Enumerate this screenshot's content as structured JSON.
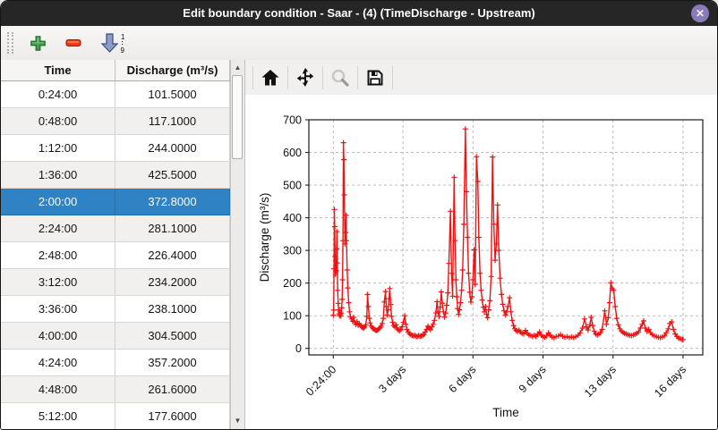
{
  "window": {
    "title": "Edit boundary condition - Saar -  (4) (TimeDischarge - Upstream)",
    "close_label": "✕"
  },
  "toolbar": {
    "add_icon": "green-plus",
    "remove_icon": "red-minus",
    "sort_icon": "sort-ascending-arrow",
    "sort_top": "1",
    "sort_bottom": "9"
  },
  "table": {
    "columns": [
      "Time",
      "Discharge (m³/s)"
    ],
    "selected_row": 4,
    "selection_color": "#2f82c4",
    "rows": [
      [
        "0:24:00",
        "101.5000"
      ],
      [
        "0:48:00",
        "117.1000"
      ],
      [
        "1:12:00",
        "244.0000"
      ],
      [
        "1:36:00",
        "425.5000"
      ],
      [
        "2:00:00",
        "372.8000"
      ],
      [
        "2:24:00",
        "281.1000"
      ],
      [
        "2:48:00",
        "226.4000"
      ],
      [
        "3:12:00",
        "234.2000"
      ],
      [
        "3:36:00",
        "238.1000"
      ],
      [
        "4:00:00",
        "304.5000"
      ],
      [
        "4:24:00",
        "357.2000"
      ],
      [
        "4:48:00",
        "261.6000"
      ],
      [
        "5:12:00",
        "177.6000"
      ]
    ]
  },
  "chart_toolbar": {
    "icons": [
      "home",
      "pan",
      "zoom-to-rectangle",
      "save"
    ]
  },
  "chart_data": {
    "type": "line",
    "title": "",
    "xlabel": "Time",
    "ylabel": "Discharge (m³/s)",
    "line_color": "#ee1312",
    "marker": "+",
    "grid": true,
    "legend": "none",
    "xlim": [
      -1.1,
      16.9
    ],
    "ylim": [
      -20,
      700
    ],
    "x_ticks": [
      {
        "value": 0.017,
        "label": "0:24:00"
      },
      {
        "value": 3.2,
        "label": "3 days"
      },
      {
        "value": 6.4,
        "label": "6 days"
      },
      {
        "value": 9.6,
        "label": "9 days"
      },
      {
        "value": 12.8,
        "label": "13 days"
      },
      {
        "value": 16,
        "label": "16 days"
      }
    ],
    "y_ticks": [
      0,
      100,
      200,
      300,
      400,
      500,
      600,
      700
    ],
    "series": [
      {
        "name": "Discharge",
        "points": [
          [
            0.017,
            101.5
          ],
          [
            0.033,
            117.1
          ],
          [
            0.05,
            244
          ],
          [
            0.067,
            425.5
          ],
          [
            0.083,
            372.8
          ],
          [
            0.1,
            281.1
          ],
          [
            0.117,
            226.4
          ],
          [
            0.133,
            234.2
          ],
          [
            0.15,
            238.1
          ],
          [
            0.167,
            304.5
          ],
          [
            0.183,
            357.2
          ],
          [
            0.2,
            261.6
          ],
          [
            0.217,
            177.6
          ],
          [
            0.24,
            138
          ],
          [
            0.26,
            118
          ],
          [
            0.28,
            106
          ],
          [
            0.3,
            100
          ],
          [
            0.32,
            112
          ],
          [
            0.34,
            104
          ],
          [
            0.36,
            99
          ],
          [
            0.38,
            108
          ],
          [
            0.4,
            124
          ],
          [
            0.42,
            150
          ],
          [
            0.44,
            210
          ],
          [
            0.46,
            330
          ],
          [
            0.48,
            630
          ],
          [
            0.5,
            578
          ],
          [
            0.52,
            470
          ],
          [
            0.55,
            320
          ],
          [
            0.58,
            355
          ],
          [
            0.6,
            408
          ],
          [
            0.62,
            330
          ],
          [
            0.65,
            240
          ],
          [
            0.68,
            185
          ],
          [
            0.72,
            140
          ],
          [
            0.76,
            112
          ],
          [
            0.8,
            97
          ],
          [
            0.85,
            90
          ],
          [
            0.9,
            83
          ],
          [
            0.95,
            95
          ],
          [
            1.0,
            79
          ],
          [
            1.05,
            73
          ],
          [
            1.1,
            82
          ],
          [
            1.15,
            71
          ],
          [
            1.2,
            76
          ],
          [
            1.25,
            70
          ],
          [
            1.3,
            67
          ],
          [
            1.35,
            64
          ],
          [
            1.4,
            62
          ],
          [
            1.45,
            66
          ],
          [
            1.5,
            72
          ],
          [
            1.55,
            98
          ],
          [
            1.58,
            165
          ],
          [
            1.62,
            128
          ],
          [
            1.66,
            92
          ],
          [
            1.7,
            78
          ],
          [
            1.75,
            68
          ],
          [
            1.8,
            63
          ],
          [
            1.85,
            60
          ],
          [
            1.9,
            58
          ],
          [
            1.95,
            56
          ],
          [
            2.0,
            55
          ],
          [
            2.05,
            57
          ],
          [
            2.1,
            60
          ],
          [
            2.15,
            63
          ],
          [
            2.2,
            68
          ],
          [
            2.25,
            76
          ],
          [
            2.3,
            92
          ],
          [
            2.35,
            142
          ],
          [
            2.4,
            174
          ],
          [
            2.44,
            128
          ],
          [
            2.48,
            102
          ],
          [
            2.52,
            118
          ],
          [
            2.56,
            152
          ],
          [
            2.6,
            183
          ],
          [
            2.64,
            134
          ],
          [
            2.68,
            98
          ],
          [
            2.73,
            80
          ],
          [
            2.78,
            70
          ],
          [
            2.83,
            66
          ],
          [
            2.88,
            72
          ],
          [
            2.93,
            62
          ],
          [
            2.98,
            57
          ],
          [
            3.04,
            54
          ],
          [
            3.1,
            58
          ],
          [
            3.16,
            66
          ],
          [
            3.22,
            80
          ],
          [
            3.28,
            100
          ],
          [
            3.33,
            74
          ],
          [
            3.38,
            58
          ],
          [
            3.44,
            50
          ],
          [
            3.5,
            45
          ],
          [
            3.56,
            42
          ],
          [
            3.62,
            40
          ],
          [
            3.68,
            38
          ],
          [
            3.74,
            40
          ],
          [
            3.8,
            37
          ],
          [
            3.86,
            36
          ],
          [
            3.92,
            39
          ],
          [
            3.98,
            37
          ],
          [
            4.04,
            38
          ],
          [
            4.1,
            40
          ],
          [
            4.16,
            43
          ],
          [
            4.22,
            50
          ],
          [
            4.28,
            58
          ],
          [
            4.34,
            68
          ],
          [
            4.4,
            62
          ],
          [
            4.46,
            57
          ],
          [
            4.52,
            66
          ],
          [
            4.58,
            74
          ],
          [
            4.64,
            86
          ],
          [
            4.7,
            108
          ],
          [
            4.76,
            143
          ],
          [
            4.8,
            112
          ],
          [
            4.85,
            98
          ],
          [
            4.9,
            126
          ],
          [
            4.95,
            173
          ],
          [
            5.0,
            138
          ],
          [
            5.05,
            112
          ],
          [
            5.1,
            96
          ],
          [
            5.15,
            108
          ],
          [
            5.2,
            132
          ],
          [
            5.25,
            170
          ],
          [
            5.3,
            260
          ],
          [
            5.37,
            420
          ],
          [
            5.42,
            230
          ],
          [
            5.47,
            160
          ],
          [
            5.54,
            524
          ],
          [
            5.58,
            330
          ],
          [
            5.62,
            210
          ],
          [
            5.66,
            158
          ],
          [
            5.7,
            122
          ],
          [
            5.74,
            104
          ],
          [
            5.78,
            118
          ],
          [
            5.83,
            140
          ],
          [
            5.88,
            178
          ],
          [
            5.93,
            240
          ],
          [
            5.98,
            380
          ],
          [
            6.05,
            672
          ],
          [
            6.1,
            480
          ],
          [
            6.15,
            340
          ],
          [
            6.2,
            230
          ],
          [
            6.25,
            172
          ],
          [
            6.3,
            142
          ],
          [
            6.35,
            158
          ],
          [
            6.4,
            210
          ],
          [
            6.45,
            302
          ],
          [
            6.5,
            196
          ],
          [
            6.56,
            587
          ],
          [
            6.62,
            511
          ],
          [
            6.67,
            340
          ],
          [
            6.72,
            230
          ],
          [
            6.77,
            178
          ],
          [
            6.82,
            148
          ],
          [
            6.87,
            126
          ],
          [
            6.92,
            112
          ],
          [
            6.97,
            128
          ],
          [
            7.02,
            104
          ],
          [
            7.07,
            94
          ],
          [
            7.12,
            118
          ],
          [
            7.17,
            146
          ],
          [
            7.23,
            220
          ],
          [
            7.29,
            586
          ],
          [
            7.35,
            380
          ],
          [
            7.41,
            270
          ],
          [
            7.47,
            320
          ],
          [
            7.52,
            439
          ],
          [
            7.58,
            300
          ],
          [
            7.64,
            215
          ],
          [
            7.7,
            165
          ],
          [
            7.76,
            135
          ],
          [
            7.82,
            115
          ],
          [
            7.88,
            102
          ],
          [
            7.94,
            112
          ],
          [
            8.0,
            128
          ],
          [
            8.07,
            155
          ],
          [
            8.13,
            112
          ],
          [
            8.19,
            86
          ],
          [
            8.25,
            70
          ],
          [
            8.31,
            60
          ],
          [
            8.37,
            55
          ],
          [
            8.43,
            52
          ],
          [
            8.5,
            56
          ],
          [
            8.57,
            50
          ],
          [
            8.64,
            46
          ],
          [
            8.72,
            44
          ],
          [
            8.8,
            55
          ],
          [
            8.88,
            46
          ],
          [
            8.96,
            41
          ],
          [
            9.04,
            39
          ],
          [
            9.12,
            37
          ],
          [
            9.2,
            40
          ],
          [
            9.28,
            36
          ],
          [
            9.36,
            44
          ],
          [
            9.44,
            50
          ],
          [
            9.52,
            40
          ],
          [
            9.6,
            36
          ],
          [
            9.68,
            34
          ],
          [
            9.76,
            38
          ],
          [
            9.85,
            48
          ],
          [
            9.93,
            40
          ],
          [
            10.01,
            35
          ],
          [
            10.1,
            33
          ],
          [
            10.2,
            36
          ],
          [
            10.3,
            38
          ],
          [
            10.4,
            42
          ],
          [
            10.5,
            37
          ],
          [
            10.6,
            34
          ],
          [
            10.7,
            36
          ],
          [
            10.8,
            33
          ],
          [
            10.9,
            35
          ],
          [
            11.0,
            33
          ],
          [
            11.1,
            36
          ],
          [
            11.2,
            40
          ],
          [
            11.3,
            48
          ],
          [
            11.4,
            62
          ],
          [
            11.5,
            90
          ],
          [
            11.58,
            66
          ],
          [
            11.66,
            56
          ],
          [
            11.74,
            72
          ],
          [
            11.8,
            95
          ],
          [
            11.87,
            70
          ],
          [
            11.94,
            52
          ],
          [
            12.01,
            44
          ],
          [
            12.08,
            41
          ],
          [
            12.15,
            44
          ],
          [
            12.22,
            48
          ],
          [
            12.3,
            58
          ],
          [
            12.42,
            115
          ],
          [
            12.5,
            74
          ],
          [
            12.58,
            94
          ],
          [
            12.64,
            140
          ],
          [
            12.7,
            201
          ],
          [
            12.76,
            183
          ],
          [
            12.83,
            178
          ],
          [
            12.9,
            128
          ],
          [
            12.97,
            92
          ],
          [
            13.04,
            72
          ],
          [
            13.11,
            60
          ],
          [
            13.18,
            53
          ],
          [
            13.25,
            49
          ],
          [
            13.32,
            46
          ],
          [
            13.4,
            44
          ],
          [
            13.48,
            42
          ],
          [
            13.56,
            40
          ],
          [
            13.64,
            39
          ],
          [
            13.72,
            41
          ],
          [
            13.8,
            43
          ],
          [
            13.88,
            46
          ],
          [
            13.96,
            50
          ],
          [
            14.05,
            62
          ],
          [
            14.13,
            74
          ],
          [
            14.2,
            84
          ],
          [
            14.27,
            62
          ],
          [
            14.35,
            52
          ],
          [
            14.43,
            58
          ],
          [
            14.51,
            48
          ],
          [
            14.6,
            42
          ],
          [
            14.69,
            38
          ],
          [
            14.78,
            36
          ],
          [
            14.87,
            34
          ],
          [
            14.96,
            33
          ],
          [
            15.05,
            35
          ],
          [
            15.14,
            38
          ],
          [
            15.23,
            48
          ],
          [
            15.32,
            60
          ],
          [
            15.4,
            76
          ],
          [
            15.48,
            81
          ],
          [
            15.56,
            58
          ],
          [
            15.64,
            44
          ],
          [
            15.72,
            36
          ],
          [
            15.8,
            31
          ],
          [
            15.88,
            29
          ],
          [
            15.96,
            27
          ],
          [
            16.0,
            27
          ]
        ]
      }
    ]
  }
}
